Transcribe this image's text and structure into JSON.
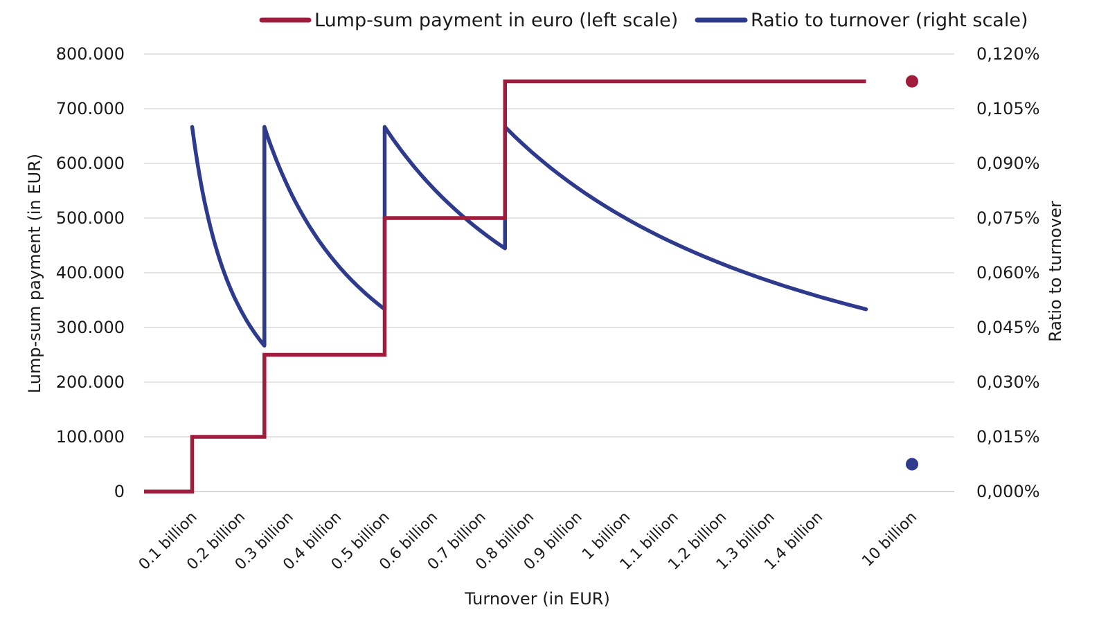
{
  "chart_data": {
    "type": "line",
    "title": "",
    "xlabel": "Turnover (in EUR)",
    "ylabel_left": "Lump-sum payment (in EUR)",
    "ylabel_right": "Ratio to turnover",
    "categories": [
      "0.1 billion",
      "0.2 billion",
      "0.3 billion",
      "0.4 billion",
      "0.5 billion",
      "0.6 billion",
      "0.7 billion",
      "0.8 billion",
      "0.9 billion",
      "1 billion",
      "1.1 billion",
      "1.2 billion",
      "1.3 billion",
      "1.4 billion",
      "10 billion"
    ],
    "yticks_left": [
      "0",
      "100.000",
      "200.000",
      "300.000",
      "400.000",
      "500.000",
      "600.000",
      "700.000",
      "800.000"
    ],
    "yticks_right": [
      "0,000%",
      "0,015%",
      "0,030%",
      "0,045%",
      "0,060%",
      "0,075%",
      "0,090%",
      "0,105%",
      "0,120%"
    ],
    "ylim_left": [
      0,
      800000
    ],
    "ylim_right": [
      0,
      0.12
    ],
    "grid": true,
    "legend_position": "top",
    "series": [
      {
        "name": "Lump-sum payment in euro (left scale)",
        "axis": "left",
        "color": "#a01c3c",
        "steps": [
          {
            "from_billion": 0.0,
            "to_billion": 0.1,
            "value": 0
          },
          {
            "from_billion": 0.1,
            "to_billion": 0.25,
            "value": 100000
          },
          {
            "from_billion": 0.25,
            "to_billion": 0.5,
            "value": 250000
          },
          {
            "from_billion": 0.5,
            "to_billion": 0.75,
            "value": 500000
          },
          {
            "from_billion": 0.75,
            "to_billion": 1.5,
            "value": 750000
          }
        ],
        "point_at_10_billion": 750000
      },
      {
        "name": "Ratio to turnover (right scale)",
        "axis": "right",
        "color": "#2e3a8c",
        "segments": [
          {
            "from_billion": 0.1,
            "to_billion": 0.25,
            "start_pct": 0.1,
            "end_pct": 0.04
          },
          {
            "from_billion": 0.25,
            "to_billion": 0.5,
            "start_pct": 0.1,
            "end_pct": 0.05
          },
          {
            "from_billion": 0.5,
            "to_billion": 0.75,
            "start_pct": 0.1,
            "end_pct": 0.0667
          },
          {
            "from_billion": 0.75,
            "to_billion": 1.5,
            "start_pct": 0.1,
            "end_pct": 0.05
          }
        ],
        "point_at_10_billion": 0.0075
      }
    ]
  }
}
